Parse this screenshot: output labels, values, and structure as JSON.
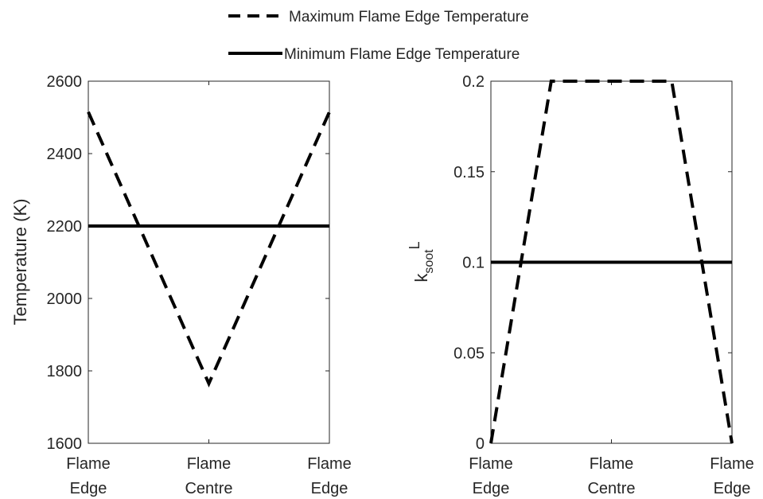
{
  "legend": {
    "placement": "top-center",
    "entries": [
      {
        "label": "Maximum Flame Edge Temperature",
        "style": "dashed",
        "color": "#000000"
      },
      {
        "label": "Minimum Flame Edge Temperature",
        "style": "solid",
        "color": "#000000"
      }
    ]
  },
  "chart_data": [
    {
      "type": "line",
      "ylabel": "Temperature (K)",
      "ylim": [
        1600,
        2600
      ],
      "yticks": [
        1600,
        1800,
        2000,
        2200,
        2400,
        2600
      ],
      "xticks": [
        {
          "line1": "Flame",
          "line2": "Edge"
        },
        {
          "line1": "Flame",
          "line2": "Centre"
        },
        {
          "line1": "Flame",
          "line2": "Edge"
        }
      ],
      "xlim": [
        0,
        1
      ],
      "tick_positions": [
        0,
        0.5,
        1
      ],
      "grid": false,
      "series": [
        {
          "name": "Maximum Flame Edge Temperature",
          "style": "dashed",
          "x": [
            0,
            0.5,
            1
          ],
          "y": [
            2515,
            1765,
            2515
          ]
        },
        {
          "name": "Minimum Flame Edge Temperature",
          "style": "solid",
          "x": [
            0,
            1
          ],
          "y": [
            2200,
            2200
          ]
        }
      ]
    },
    {
      "type": "line",
      "ylabel_main": "k",
      "ylabel_sub": "soot",
      "ylabel_sup": "L",
      "ylim": [
        0,
        0.2
      ],
      "yticks": [
        "0",
        "0.05",
        "0.1",
        "0.15",
        "0.2"
      ],
      "yticks_values": [
        0,
        0.05,
        0.1,
        0.15,
        0.2
      ],
      "xticks": [
        {
          "line1": "Flame",
          "line2": "Edge"
        },
        {
          "line1": "Flame",
          "line2": "Centre"
        },
        {
          "line1": "Flame",
          "line2": "Edge"
        }
      ],
      "xlim": [
        0,
        1
      ],
      "tick_positions": [
        0,
        0.5,
        1
      ],
      "grid": false,
      "series": [
        {
          "name": "Maximum Flame Edge Temperature",
          "style": "dashed",
          "x": [
            0,
            0.25,
            0.75,
            1
          ],
          "y": [
            0,
            0.2,
            0.2,
            0
          ]
        },
        {
          "name": "Minimum Flame Edge Temperature",
          "style": "solid",
          "x": [
            0,
            1
          ],
          "y": [
            0.1,
            0.1
          ]
        }
      ]
    }
  ]
}
